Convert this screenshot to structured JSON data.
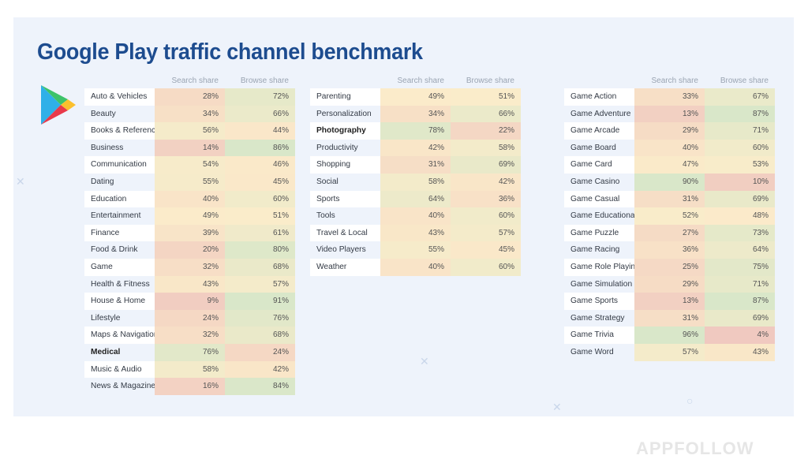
{
  "title": "Google Play traffic channel benchmark",
  "headers": {
    "search": "Search share",
    "browse": "Browse share"
  },
  "brand": "APPFOLLOW",
  "colors": {
    "low": "#efc6bf",
    "mid": "#fbecca",
    "high": "#d9e7c9",
    "title": "#1d4c8f",
    "background": "#eef3fb"
  },
  "chart_data": [
    {
      "type": "table",
      "columns": [
        "",
        "Search share",
        "Browse share"
      ],
      "rows": [
        {
          "category": "Auto & Vehicles",
          "search": "28%",
          "browse": "72%"
        },
        {
          "category": "Beauty",
          "search": "34%",
          "browse": "66%"
        },
        {
          "category": "Books & Reference",
          "search": "56%",
          "browse": "44%"
        },
        {
          "category": "Business",
          "search": "14%",
          "browse": "86%"
        },
        {
          "category": "Communication",
          "search": "54%",
          "browse": "46%"
        },
        {
          "category": "Dating",
          "search": "55%",
          "browse": "45%"
        },
        {
          "category": "Education",
          "search": "40%",
          "browse": "60%"
        },
        {
          "category": "Entertainment",
          "search": "49%",
          "browse": "51%"
        },
        {
          "category": "Finance",
          "search": "39%",
          "browse": "61%"
        },
        {
          "category": "Food & Drink",
          "search": "20%",
          "browse": "80%"
        },
        {
          "category": "Game",
          "search": "32%",
          "browse": "68%"
        },
        {
          "category": "Health & Fitness",
          "search": "43%",
          "browse": "57%"
        },
        {
          "category": "House & Home",
          "search": "9%",
          "browse": "91%"
        },
        {
          "category": "Lifestyle",
          "search": "24%",
          "browse": "76%"
        },
        {
          "category": "Maps & Navigation",
          "search": "32%",
          "browse": "68%"
        },
        {
          "category": "Medical",
          "search": "76%",
          "browse": "24%",
          "bold": true
        },
        {
          "category": "Music & Audio",
          "search": "58%",
          "browse": "42%"
        },
        {
          "category": "News & Magazines",
          "search": "16%",
          "browse": "84%"
        }
      ]
    },
    {
      "type": "table",
      "columns": [
        "",
        "Search share",
        "Browse share"
      ],
      "rows": [
        {
          "category": "Parenting",
          "search": "49%",
          "browse": "51%"
        },
        {
          "category": "Personalization",
          "search": "34%",
          "browse": "66%"
        },
        {
          "category": "Photography",
          "search": "78%",
          "browse": "22%",
          "bold": true
        },
        {
          "category": "Productivity",
          "search": "42%",
          "browse": "58%"
        },
        {
          "category": "Shopping",
          "search": "31%",
          "browse": "69%"
        },
        {
          "category": "Social",
          "search": "58%",
          "browse": "42%"
        },
        {
          "category": "Sports",
          "search": "64%",
          "browse": "36%"
        },
        {
          "category": "Tools",
          "search": "40%",
          "browse": "60%"
        },
        {
          "category": "Travel & Local",
          "search": "43%",
          "browse": "57%"
        },
        {
          "category": "Video Players",
          "search": "55%",
          "browse": "45%"
        },
        {
          "category": "Weather",
          "search": "40%",
          "browse": "60%"
        }
      ]
    },
    {
      "type": "table",
      "columns": [
        "",
        "Search share",
        "Browse share"
      ],
      "rows": [
        {
          "category": "Game Action",
          "search": "33%",
          "browse": "67%"
        },
        {
          "category": "Game Adventure",
          "search": "13%",
          "browse": "87%"
        },
        {
          "category": "Game Arcade",
          "search": "29%",
          "browse": "71%"
        },
        {
          "category": "Game Board",
          "search": "40%",
          "browse": "60%"
        },
        {
          "category": "Game Card",
          "search": "47%",
          "browse": "53%"
        },
        {
          "category": "Game Casino",
          "search": "90%",
          "browse": "10%"
        },
        {
          "category": "Game Casual",
          "search": "31%",
          "browse": "69%"
        },
        {
          "category": "Game Educational",
          "search": "52%",
          "browse": "48%"
        },
        {
          "category": "Game Puzzle",
          "search": "27%",
          "browse": "73%"
        },
        {
          "category": "Game Racing",
          "search": "36%",
          "browse": "64%"
        },
        {
          "category": "Game Role Playing",
          "search": "25%",
          "browse": "75%"
        },
        {
          "category": "Game Simulation",
          "search": "29%",
          "browse": "71%"
        },
        {
          "category": "Game Sports",
          "search": "13%",
          "browse": "87%"
        },
        {
          "category": "Game Strategy",
          "search": "31%",
          "browse": "69%"
        },
        {
          "category": "Game Trivia",
          "search": "96%",
          "browse": "4%"
        },
        {
          "category": "Game Word",
          "search": "57%",
          "browse": "43%"
        }
      ]
    }
  ]
}
